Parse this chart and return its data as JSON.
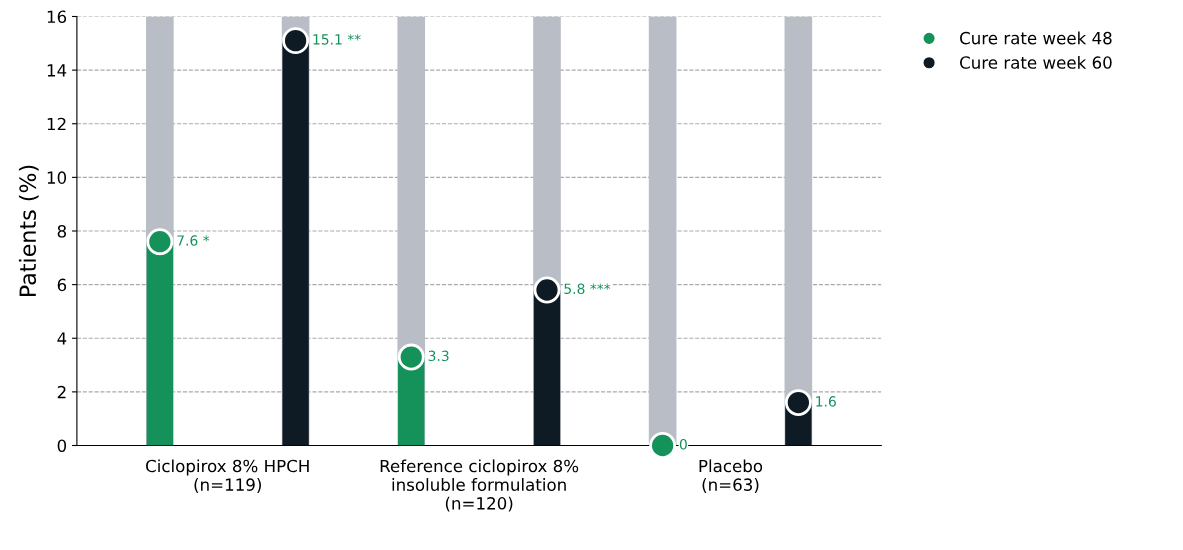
{
  "chart_data": {
    "type": "lollipop",
    "ylabel": "Patients (%)",
    "categories": [
      "Ciclopirox 8% HPCH\n(n=119)",
      "Reference ciclopirox 8%\ninsoluble formulation\n(n=120)",
      "Placebo\n(n=63)"
    ],
    "series": [
      {
        "type": "bar",
        "color": "#b9bec6",
        "values": [
          16,
          16,
          16
        ]
      },
      {
        "type": "bar",
        "color": "#b9bec6",
        "values": [
          16,
          16,
          16
        ]
      },
      {
        "name": "Cure rate week 48",
        "color": "#15915a",
        "values": [
          7.6,
          3.3,
          0
        ],
        "marker": "circle",
        "value_labels": [
          "7.6 *",
          "3.3",
          "0"
        ]
      },
      {
        "name": "Cure rate week 60",
        "color": "#0e1a24",
        "values": [
          15.1,
          5.8,
          1.6
        ],
        "marker": "circle",
        "value_labels": [
          "15.1 **",
          "5.8 ***",
          "1.6"
        ]
      }
    ],
    "ylim": [
      0,
      16
    ],
    "yticks": [
      0,
      2,
      4,
      6,
      8,
      10,
      12,
      14,
      16
    ],
    "grid": "y",
    "legend": "top right"
  }
}
